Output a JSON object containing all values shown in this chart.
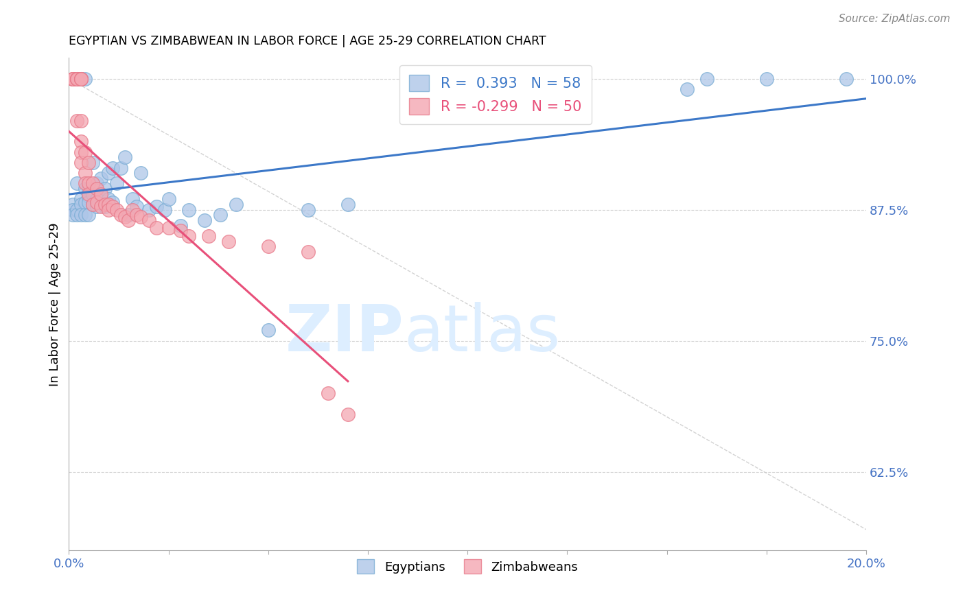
{
  "title": "EGYPTIAN VS ZIMBABWEAN IN LABOR FORCE | AGE 25-29 CORRELATION CHART",
  "source": "Source: ZipAtlas.com",
  "ylabel": "In Labor Force | Age 25-29",
  "xlim": [
    0.0,
    0.2
  ],
  "ylim": [
    0.55,
    1.02
  ],
  "yticks": [
    0.625,
    0.75,
    0.875,
    1.0
  ],
  "ytick_labels": [
    "62.5%",
    "75.0%",
    "87.5%",
    "100.0%"
  ],
  "xticks": [
    0.0,
    0.025,
    0.05,
    0.075,
    0.1,
    0.125,
    0.15,
    0.175,
    0.2
  ],
  "xtick_labels": [
    "0.0%",
    "",
    "",
    "",
    "",
    "",
    "",
    "",
    "20.0%"
  ],
  "egyptians_x": [
    0.001,
    0.001,
    0.001,
    0.002,
    0.002,
    0.002,
    0.002,
    0.002,
    0.003,
    0.003,
    0.003,
    0.003,
    0.003,
    0.004,
    0.004,
    0.004,
    0.004,
    0.005,
    0.005,
    0.005,
    0.005,
    0.006,
    0.006,
    0.006,
    0.007,
    0.007,
    0.007,
    0.008,
    0.008,
    0.009,
    0.009,
    0.01,
    0.01,
    0.011,
    0.011,
    0.012,
    0.013,
    0.014,
    0.015,
    0.016,
    0.017,
    0.018,
    0.02,
    0.022,
    0.024,
    0.025,
    0.028,
    0.03,
    0.034,
    0.038,
    0.042,
    0.05,
    0.06,
    0.07,
    0.155,
    0.16,
    0.175,
    0.195
  ],
  "egyptians_y": [
    0.88,
    0.875,
    0.87,
    1.0,
    1.0,
    0.9,
    0.875,
    0.87,
    1.0,
    1.0,
    0.885,
    0.88,
    0.87,
    1.0,
    0.895,
    0.882,
    0.87,
    0.895,
    0.888,
    0.882,
    0.87,
    0.92,
    0.89,
    0.88,
    0.9,
    0.885,
    0.878,
    0.905,
    0.888,
    0.895,
    0.878,
    0.91,
    0.885,
    0.915,
    0.882,
    0.9,
    0.915,
    0.925,
    0.87,
    0.885,
    0.878,
    0.91,
    0.875,
    0.878,
    0.875,
    0.885,
    0.86,
    0.875,
    0.865,
    0.87,
    0.88,
    0.76,
    0.875,
    0.88,
    0.99,
    1.0,
    1.0,
    1.0
  ],
  "zimbabweans_x": [
    0.001,
    0.001,
    0.001,
    0.001,
    0.002,
    0.002,
    0.002,
    0.002,
    0.002,
    0.003,
    0.003,
    0.003,
    0.003,
    0.003,
    0.003,
    0.003,
    0.004,
    0.004,
    0.004,
    0.005,
    0.005,
    0.005,
    0.006,
    0.006,
    0.007,
    0.007,
    0.008,
    0.008,
    0.009,
    0.01,
    0.01,
    0.011,
    0.012,
    0.013,
    0.014,
    0.015,
    0.016,
    0.017,
    0.018,
    0.02,
    0.022,
    0.025,
    0.028,
    0.03,
    0.035,
    0.04,
    0.05,
    0.06,
    0.065,
    0.07
  ],
  "zimbabweans_y": [
    1.0,
    1.0,
    1.0,
    1.0,
    1.0,
    1.0,
    1.0,
    1.0,
    0.96,
    1.0,
    1.0,
    1.0,
    0.96,
    0.94,
    0.93,
    0.92,
    0.93,
    0.91,
    0.9,
    0.92,
    0.9,
    0.89,
    0.9,
    0.88,
    0.895,
    0.882,
    0.89,
    0.878,
    0.88,
    0.88,
    0.875,
    0.878,
    0.875,
    0.87,
    0.868,
    0.865,
    0.875,
    0.87,
    0.868,
    0.865,
    0.858,
    0.858,
    0.855,
    0.85,
    0.85,
    0.845,
    0.84,
    0.835,
    0.7,
    0.68
  ],
  "R_egyptian": 0.393,
  "N_egyptian": 58,
  "R_zimbabwean": -0.299,
  "N_zimbabwean": 50,
  "color_egyptian": "#aec6e8",
  "color_zimbabwean": "#f4a7b2",
  "color_egyptian_edge": "#7aadd4",
  "color_zimbabwean_edge": "#e87a8a",
  "color_egyptian_line": "#3c78c8",
  "color_zimbabwean_line": "#e8507a",
  "color_diagonal": "#c8c8c8",
  "axis_color": "#4472c4",
  "tick_color": "#4472c4",
  "background_color": "#ffffff",
  "grid_color": "#cccccc",
  "watermark_zip": "ZIP",
  "watermark_atlas": "atlas",
  "watermark_color": "#ddeeff"
}
